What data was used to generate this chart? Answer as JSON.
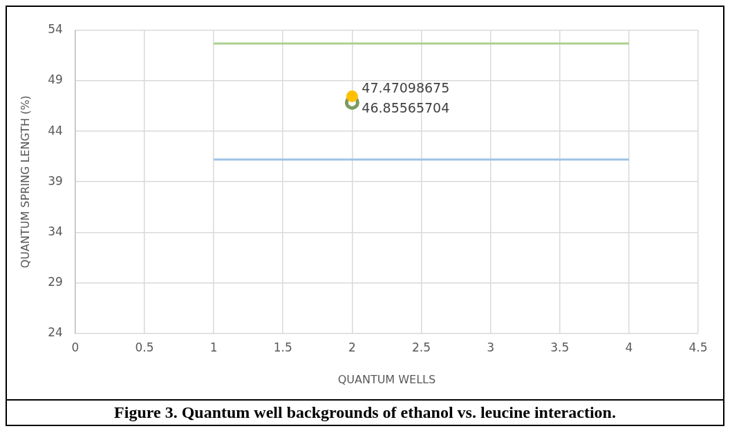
{
  "chart_data": {
    "type": "scatter",
    "xlabel": "QUANTUM WELLS",
    "ylabel": "QUANTUM SPRING LENGTH (%)",
    "annotations": [
      "Figure 3. Quantum well backgrounds of ethanol vs. leucine interaction."
    ],
    "xlim": [
      0,
      4.5
    ],
    "xticks": [
      0,
      0.5,
      1,
      1.5,
      2,
      2.5,
      3,
      3.5,
      4,
      4.5
    ],
    "ylim": [
      24,
      54
    ],
    "yticks": [
      24,
      29,
      34,
      39,
      44,
      49,
      54
    ],
    "grid": true,
    "legend": false,
    "series": [
      {
        "type": "line",
        "marker": "none",
        "color": "#a9d18e",
        "x": [
          1,
          4
        ],
        "values": [
          52.7,
          52.7
        ]
      },
      {
        "type": "line",
        "marker": "none",
        "color": "#9dc3e6",
        "x": [
          1,
          4
        ],
        "values": [
          41.2,
          41.2
        ]
      },
      {
        "type": "scatter",
        "marker": "circle",
        "color": "#ffc000",
        "x": [
          2
        ],
        "values": [
          47.47098675
        ],
        "value_labels": [
          "47.47098675"
        ]
      },
      {
        "type": "scatter",
        "marker": "circle",
        "color": "#7a9a5f",
        "x": [
          2
        ],
        "values": [
          46.85565704
        ],
        "value_labels": [
          "46.85565704"
        ]
      }
    ]
  }
}
